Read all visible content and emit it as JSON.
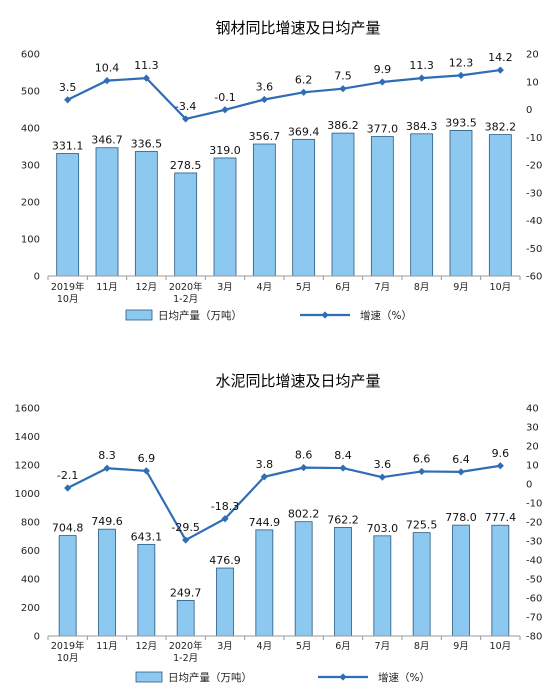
{
  "chart_data": [
    {
      "type": "bar",
      "title": "钢材同比增速及日均产量",
      "categories": [
        "2019年\n10月",
        "11月",
        "12月",
        "2020年\n1-2月",
        "3月",
        "4月",
        "5月",
        "6月",
        "7月",
        "8月",
        "9月",
        "10月"
      ],
      "series": [
        {
          "name": "日均产量（万吨）",
          "type": "bar",
          "axis": "left",
          "values": [
            331.1,
            346.7,
            336.5,
            278.5,
            319.0,
            356.7,
            369.4,
            386.2,
            377.0,
            384.3,
            393.5,
            382.2
          ],
          "labels": [
            "331.1",
            "346.7",
            "336.5",
            "278.5",
            "319.0",
            "356.7",
            "369.4",
            "386.2",
            "377.0",
            "384.3",
            "393.5",
            "382.2"
          ]
        },
        {
          "name": "增速（%）",
          "type": "line",
          "axis": "right",
          "values": [
            3.5,
            10.4,
            11.3,
            -3.4,
            -0.1,
            3.6,
            6.2,
            7.5,
            9.9,
            11.3,
            12.3,
            14.2
          ],
          "labels": [
            "3.5",
            "10.4",
            "11.3",
            "-3.4",
            "-0.1",
            "3.6",
            "6.2",
            "7.5",
            "9.9",
            "11.3",
            "12.3",
            "14.2"
          ]
        }
      ],
      "ylim": [
        0,
        600
      ],
      "yticks": [
        "0",
        "100",
        "200",
        "300",
        "400",
        "500",
        "600"
      ],
      "y2lim": [
        -60,
        20
      ],
      "y2ticks": [
        "-60",
        "-50",
        "-40",
        "-30",
        "-20",
        "-10",
        "0",
        "10",
        "20"
      ],
      "legend": [
        "日均产量（万吨）",
        "增速（%）"
      ],
      "colors": {
        "bar_fill": "#8cc8f0",
        "bar_stroke": "#2a5a80",
        "line": "#2f6db5"
      }
    },
    {
      "type": "bar",
      "title": "水泥同比增速及日均产量",
      "categories": [
        "2019年\n10月",
        "11月",
        "12月",
        "2020年\n1-2月",
        "3月",
        "4月",
        "5月",
        "6月",
        "7月",
        "8月",
        "9月",
        "10月"
      ],
      "series": [
        {
          "name": "日均产量（万吨）",
          "type": "bar",
          "axis": "left",
          "values": [
            704.8,
            749.6,
            643.1,
            249.7,
            476.9,
            744.9,
            802.2,
            762.2,
            703.0,
            725.5,
            778.0,
            777.4
          ],
          "labels": [
            "704.8",
            "749.6",
            "643.1",
            "249.7",
            "476.9",
            "744.9",
            "802.2",
            "762.2",
            "703.0",
            "725.5",
            "778.0",
            "777.4"
          ]
        },
        {
          "name": "增速（%）",
          "type": "line",
          "axis": "right",
          "values": [
            -2.1,
            8.3,
            6.9,
            -29.5,
            -18.3,
            3.8,
            8.6,
            8.4,
            3.6,
            6.6,
            6.4,
            9.6
          ],
          "labels": [
            "-2.1",
            "8.3",
            "6.9",
            "-29.5",
            "-18.3",
            "3.8",
            "8.6",
            "8.4",
            "3.6",
            "6.6",
            "6.4",
            "9.6"
          ]
        }
      ],
      "ylim": [
        0,
        1600
      ],
      "yticks": [
        "0",
        "200",
        "400",
        "600",
        "800",
        "1000",
        "1200",
        "1400",
        "1600"
      ],
      "y2lim": [
        -80,
        40
      ],
      "y2ticks": [
        "-80",
        "-70",
        "-60",
        "-50",
        "-40",
        "-30",
        "-20",
        "-10",
        "0",
        "10",
        "20",
        "30",
        "40"
      ],
      "legend": [
        "日均产量（万吨）",
        "增速（%）"
      ],
      "colors": {
        "bar_fill": "#8cc8f0",
        "bar_stroke": "#2a5a80",
        "line": "#2f6db5"
      }
    }
  ]
}
